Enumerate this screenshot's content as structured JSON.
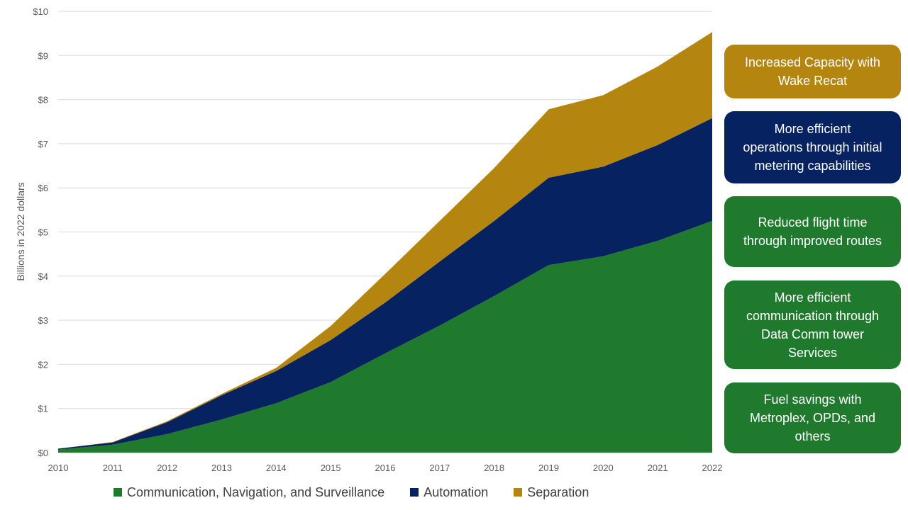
{
  "chart_data": {
    "type": "area",
    "stacked": true,
    "x": [
      "2010",
      "2011",
      "2012",
      "2013",
      "2014",
      "2015",
      "2016",
      "2017",
      "2018",
      "2019",
      "2020",
      "2021",
      "2022"
    ],
    "series": [
      {
        "name": "Communication, Navigation, and Surveillance",
        "color": "#1f7a2e",
        "values": [
          0.07,
          0.18,
          0.42,
          0.75,
          1.12,
          1.6,
          2.25,
          2.88,
          3.55,
          4.25,
          4.45,
          4.8,
          5.25
        ]
      },
      {
        "name": "Automation",
        "color": "#062260",
        "values": [
          0.02,
          0.05,
          0.27,
          0.55,
          0.73,
          0.95,
          1.15,
          1.45,
          1.7,
          1.98,
          2.03,
          2.17,
          2.33
        ]
      },
      {
        "name": "Separation",
        "color": "#b5860f",
        "values": [
          0.0,
          0.01,
          0.02,
          0.03,
          0.07,
          0.32,
          0.65,
          0.92,
          1.2,
          1.55,
          1.62,
          1.78,
          1.95
        ]
      }
    ],
    "xlabel": "",
    "ylabel": "Billions in 2022 dollars",
    "ylim": [
      0,
      10
    ],
    "yticks": [
      "$0",
      "$1",
      "$2",
      "$3",
      "$4",
      "$5",
      "$6",
      "$7",
      "$8",
      "$9",
      "$10"
    ],
    "grid": true,
    "legend": "bottom"
  },
  "callouts": [
    {
      "text": "Increased Capacity with Wake Recat",
      "lines": [
        "Increased Capacity with",
        "Wake Recat"
      ],
      "color": "#b5860f"
    },
    {
      "text": "More efficient operations through initial metering capabilities",
      "lines": [
        "More efficient",
        "operations through initial",
        "metering capabilities"
      ],
      "color": "#062260"
    },
    {
      "text": "Reduced flight time through improved routes",
      "lines": [
        "Reduced flight time",
        "through improved routes"
      ],
      "color": "#1f7a2e"
    },
    {
      "text": "More efficient communication through Data Comm tower Services",
      "lines": [
        "More efficient",
        "communication through",
        "Data Comm tower",
        "Services"
      ],
      "color": "#1f7a2e"
    },
    {
      "text": "Fuel savings with Metroplex, OPDs, and others",
      "lines": [
        "Fuel savings with",
        "Metroplex, OPDs, and",
        "others"
      ],
      "color": "#1f7a2e"
    }
  ]
}
